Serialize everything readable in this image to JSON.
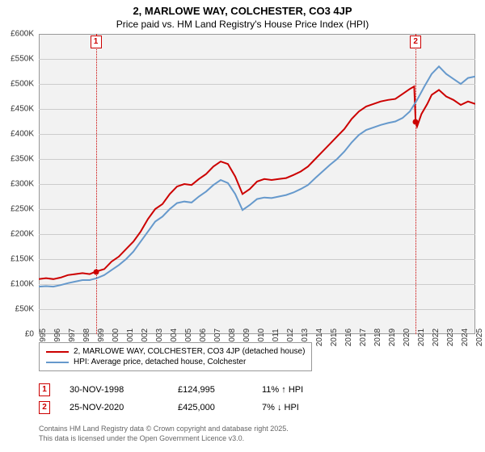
{
  "title": "2, MARLOWE WAY, COLCHESTER, CO3 4JP",
  "subtitle": "Price paid vs. HM Land Registry's House Price Index (HPI)",
  "chart": {
    "type": "line",
    "background_color": "#f2f2f2",
    "grid_color": "#cccccc",
    "border_color": "#999999",
    "ylim": [
      0,
      600000
    ],
    "ytick_step": 50000,
    "yticks": [
      "£0",
      "£50K",
      "£100K",
      "£150K",
      "£200K",
      "£250K",
      "£300K",
      "£350K",
      "£400K",
      "£450K",
      "£500K",
      "£550K",
      "£600K"
    ],
    "xlim": [
      1995,
      2025
    ],
    "xticks": [
      1995,
      1996,
      1997,
      1998,
      1999,
      2000,
      2001,
      2002,
      2003,
      2004,
      2005,
      2006,
      2007,
      2008,
      2009,
      2010,
      2011,
      2012,
      2013,
      2014,
      2015,
      2016,
      2017,
      2018,
      2019,
      2020,
      2021,
      2022,
      2023,
      2024,
      2025
    ],
    "label_fontsize": 10,
    "series": [
      {
        "id": "property",
        "label": "2, MARLOWE WAY, COLCHESTER, CO3 4JP (detached house)",
        "color": "#cc0000",
        "line_width": 2,
        "data": [
          [
            1995,
            110000
          ],
          [
            1995.5,
            112000
          ],
          [
            1996,
            110000
          ],
          [
            1996.5,
            113000
          ],
          [
            1997,
            118000
          ],
          [
            1997.5,
            120000
          ],
          [
            1998,
            122000
          ],
          [
            1998.5,
            120000
          ],
          [
            1998.92,
            124995
          ],
          [
            1999.5,
            130000
          ],
          [
            2000,
            145000
          ],
          [
            2000.5,
            155000
          ],
          [
            2001,
            170000
          ],
          [
            2001.5,
            185000
          ],
          [
            2002,
            205000
          ],
          [
            2002.5,
            230000
          ],
          [
            2003,
            250000
          ],
          [
            2003.5,
            260000
          ],
          [
            2004,
            280000
          ],
          [
            2004.5,
            295000
          ],
          [
            2005,
            300000
          ],
          [
            2005.5,
            298000
          ],
          [
            2006,
            310000
          ],
          [
            2006.5,
            320000
          ],
          [
            2007,
            335000
          ],
          [
            2007.5,
            345000
          ],
          [
            2008,
            340000
          ],
          [
            2008.5,
            315000
          ],
          [
            2009,
            280000
          ],
          [
            2009.5,
            290000
          ],
          [
            2010,
            305000
          ],
          [
            2010.5,
            310000
          ],
          [
            2011,
            308000
          ],
          [
            2011.5,
            310000
          ],
          [
            2012,
            312000
          ],
          [
            2012.5,
            318000
          ],
          [
            2013,
            325000
          ],
          [
            2013.5,
            335000
          ],
          [
            2014,
            350000
          ],
          [
            2014.5,
            365000
          ],
          [
            2015,
            380000
          ],
          [
            2015.5,
            395000
          ],
          [
            2016,
            410000
          ],
          [
            2016.5,
            430000
          ],
          [
            2017,
            445000
          ],
          [
            2017.5,
            455000
          ],
          [
            2018,
            460000
          ],
          [
            2018.5,
            465000
          ],
          [
            2019,
            468000
          ],
          [
            2019.5,
            470000
          ],
          [
            2020,
            480000
          ],
          [
            2020.5,
            490000
          ],
          [
            2020.8,
            495000
          ],
          [
            2020.9,
            425000
          ],
          [
            2021,
            415000
          ],
          [
            2021.3,
            440000
          ],
          [
            2021.7,
            460000
          ],
          [
            2022,
            478000
          ],
          [
            2022.5,
            488000
          ],
          [
            2023,
            475000
          ],
          [
            2023.5,
            468000
          ],
          [
            2024,
            458000
          ],
          [
            2024.5,
            465000
          ],
          [
            2025,
            460000
          ]
        ]
      },
      {
        "id": "hpi",
        "label": "HPI: Average price, detached house, Colchester",
        "color": "#6699cc",
        "line_width": 2,
        "data": [
          [
            1995,
            95000
          ],
          [
            1995.5,
            96000
          ],
          [
            1996,
            95000
          ],
          [
            1996.5,
            98000
          ],
          [
            1997,
            102000
          ],
          [
            1997.5,
            105000
          ],
          [
            1998,
            108000
          ],
          [
            1998.5,
            108000
          ],
          [
            1999,
            112000
          ],
          [
            1999.5,
            118000
          ],
          [
            2000,
            128000
          ],
          [
            2000.5,
            138000
          ],
          [
            2001,
            150000
          ],
          [
            2001.5,
            165000
          ],
          [
            2002,
            185000
          ],
          [
            2002.5,
            205000
          ],
          [
            2003,
            225000
          ],
          [
            2003.5,
            235000
          ],
          [
            2004,
            250000
          ],
          [
            2004.5,
            262000
          ],
          [
            2005,
            265000
          ],
          [
            2005.5,
            263000
          ],
          [
            2006,
            275000
          ],
          [
            2006.5,
            285000
          ],
          [
            2007,
            298000
          ],
          [
            2007.5,
            308000
          ],
          [
            2008,
            302000
          ],
          [
            2008.5,
            280000
          ],
          [
            2009,
            248000
          ],
          [
            2009.5,
            258000
          ],
          [
            2010,
            270000
          ],
          [
            2010.5,
            273000
          ],
          [
            2011,
            272000
          ],
          [
            2011.5,
            275000
          ],
          [
            2012,
            278000
          ],
          [
            2012.5,
            283000
          ],
          [
            2013,
            290000
          ],
          [
            2013.5,
            298000
          ],
          [
            2014,
            312000
          ],
          [
            2014.5,
            325000
          ],
          [
            2015,
            338000
          ],
          [
            2015.5,
            350000
          ],
          [
            2016,
            365000
          ],
          [
            2016.5,
            383000
          ],
          [
            2017,
            398000
          ],
          [
            2017.5,
            408000
          ],
          [
            2018,
            413000
          ],
          [
            2018.5,
            418000
          ],
          [
            2019,
            422000
          ],
          [
            2019.5,
            425000
          ],
          [
            2020,
            432000
          ],
          [
            2020.5,
            445000
          ],
          [
            2021,
            468000
          ],
          [
            2021.5,
            495000
          ],
          [
            2022,
            520000
          ],
          [
            2022.5,
            535000
          ],
          [
            2023,
            520000
          ],
          [
            2023.5,
            510000
          ],
          [
            2024,
            500000
          ],
          [
            2024.5,
            512000
          ],
          [
            2025,
            515000
          ]
        ]
      }
    ],
    "markers": [
      {
        "n": "1",
        "x": 1998.92,
        "y": 124995,
        "vline_color": "#cc0000"
      },
      {
        "n": "2",
        "x": 2020.9,
        "y": 425000,
        "vline_color": "#cc0000"
      }
    ],
    "marker_dot_color": "#cc0000"
  },
  "legend": {
    "rows": [
      {
        "color": "#cc0000",
        "label": "2, MARLOWE WAY, COLCHESTER, CO3 4JP (detached house)"
      },
      {
        "color": "#6699cc",
        "label": "HPI: Average price, detached house, Colchester"
      }
    ]
  },
  "sales": [
    {
      "n": "1",
      "date": "30-NOV-1998",
      "price": "£124,995",
      "delta": "11%",
      "arrow": "↑",
      "vs": "HPI"
    },
    {
      "n": "2",
      "date": "25-NOV-2020",
      "price": "£425,000",
      "delta": "7%",
      "arrow": "↓",
      "vs": "HPI"
    }
  ],
  "footer": {
    "line1": "Contains HM Land Registry data © Crown copyright and database right 2025.",
    "line2": "This data is licensed under the Open Government Licence v3.0."
  }
}
